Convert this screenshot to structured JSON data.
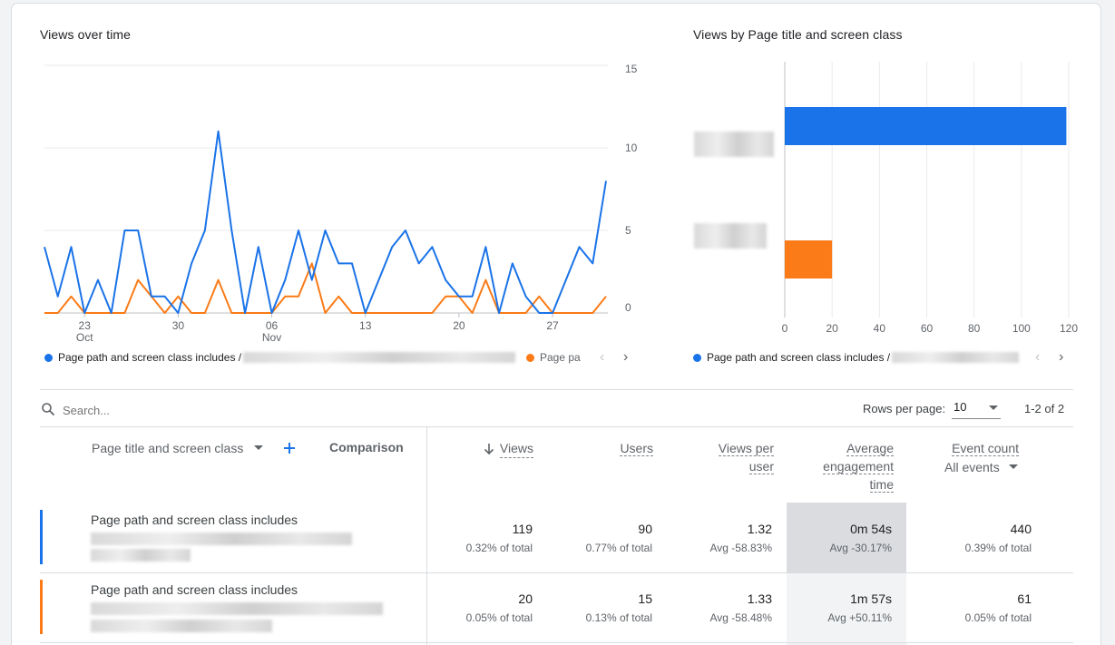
{
  "line_chart": {
    "title": "Views over time",
    "y_ticks": [
      "15",
      "10",
      "5",
      "0"
    ],
    "x_ticks": [
      {
        "day": "23",
        "month": "Oct"
      },
      {
        "day": "30",
        "month": ""
      },
      {
        "day": "06",
        "month": "Nov"
      },
      {
        "day": "13",
        "month": ""
      },
      {
        "day": "20",
        "month": ""
      },
      {
        "day": "27",
        "month": ""
      }
    ],
    "legend": [
      {
        "label": "Page path and screen class includes /",
        "color": "#1a73e8"
      },
      {
        "label": "Page pa",
        "color": "#fa7b17"
      }
    ]
  },
  "bar_chart": {
    "title": "Views by Page title and screen class",
    "x_ticks": [
      "0",
      "20",
      "40",
      "60",
      "80",
      "100",
      "120"
    ],
    "legend": [
      {
        "label": "Page path and screen class includes /",
        "color": "#1a73e8"
      }
    ]
  },
  "chart_data": [
    {
      "type": "line",
      "title": "Views over time",
      "x_start": "2023-10-20",
      "ylim": [
        0,
        15
      ],
      "series": [
        {
          "name": "Page path and screen class includes /",
          "color": "#1a73e8",
          "values": [
            4,
            1,
            4,
            0,
            2,
            0,
            5,
            5,
            1,
            1,
            0,
            3,
            5,
            11,
            5,
            0,
            4,
            0,
            2,
            5,
            2,
            5,
            3,
            3,
            0,
            2,
            4,
            5,
            3,
            4,
            2,
            1,
            1,
            4,
            0,
            3,
            1,
            0,
            0,
            2,
            4,
            3,
            8
          ]
        },
        {
          "name": "Page pa",
          "color": "#fa7b17",
          "values": [
            0,
            0,
            1,
            0,
            0,
            0,
            0,
            2,
            1,
            0,
            1,
            0,
            0,
            2,
            0,
            0,
            0,
            0,
            1,
            1,
            3,
            0,
            1,
            0,
            0,
            0,
            0,
            0,
            0,
            0,
            1,
            1,
            0,
            2,
            0,
            0,
            0,
            1,
            0,
            0,
            0,
            0,
            1
          ]
        }
      ]
    },
    {
      "type": "bar",
      "title": "Views by Page title and screen class",
      "xlim": [
        0,
        120
      ],
      "categories": [
        "",
        ""
      ],
      "values": [
        119,
        20
      ],
      "colors": [
        "#1a73e8",
        "#fa7b17"
      ]
    }
  ],
  "toolbar": {
    "search_placeholder": "Search...",
    "rows_per_page_label": "Rows per page:",
    "rows_per_page_value": "10",
    "pagination": "1-2 of 2"
  },
  "table": {
    "dimension_header": "Page title and screen class",
    "comparison_header": "Comparison",
    "col_views": "Views",
    "col_users": "Users",
    "col_vpu_1": "Views per",
    "col_vpu_2": "user",
    "col_aet_1": "Average",
    "col_aet_2": "engagement",
    "col_aet_3": "time",
    "col_events": "Event count",
    "events_filter": "All events",
    "rows": [
      {
        "label": "Page path and screen class includes",
        "color": "#1a73e8",
        "views": "119",
        "views_sub": "0.32% of total",
        "users": "90",
        "users_sub": "0.77% of total",
        "vpu": "1.32",
        "vpu_sub": "Avg -58.83%",
        "aet": "0m 54s",
        "aet_sub": "Avg -30.17%",
        "events": "440",
        "events_sub": "0.39% of total"
      },
      {
        "label": "Page path and screen class includes",
        "color": "#fa7b17",
        "views": "20",
        "views_sub": "0.05% of total",
        "users": "15",
        "users_sub": "0.13% of total",
        "vpu": "1.33",
        "vpu_sub": "Avg -58.48%",
        "aet": "1m 57s",
        "aet_sub": "Avg +50.11%",
        "events": "61",
        "events_sub": "0.05% of total"
      }
    ]
  }
}
